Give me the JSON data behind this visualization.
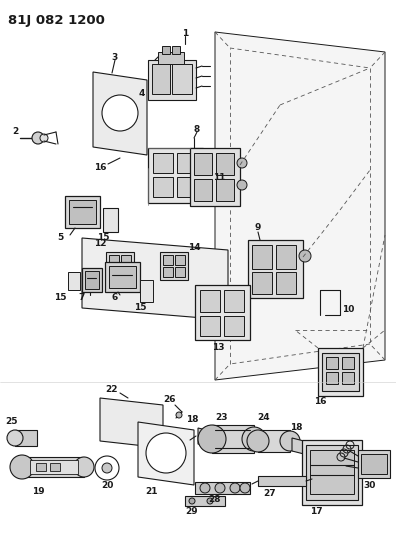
{
  "title": "81J 082 1200",
  "bg_color": "#ffffff",
  "lc": "#1a1a1a",
  "fig_width": 3.96,
  "fig_height": 5.33,
  "dpi": 100
}
